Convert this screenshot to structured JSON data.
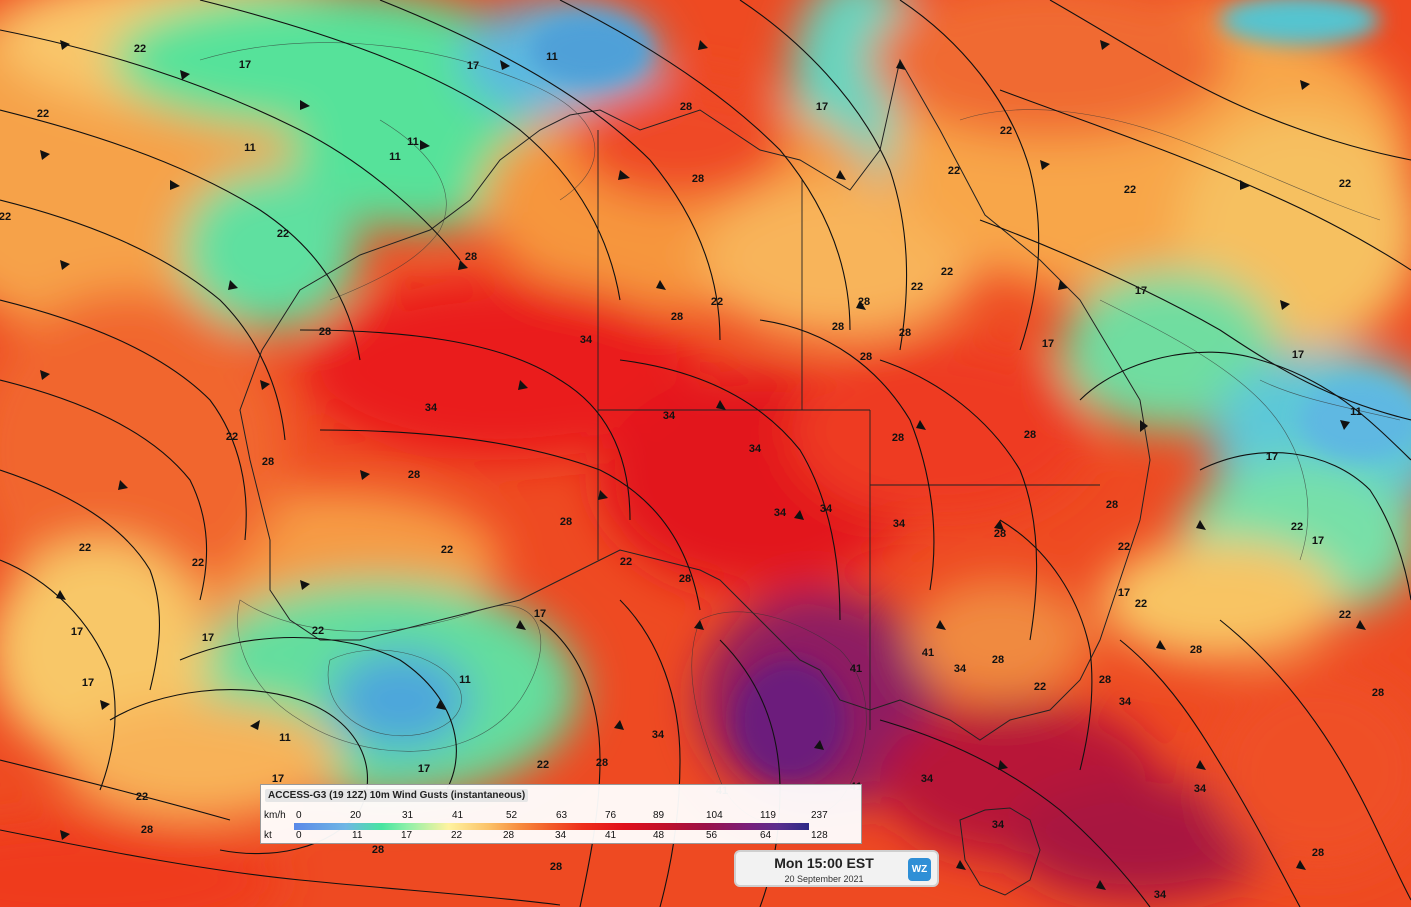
{
  "map": {
    "contour_labels": [
      "11",
      "17",
      "22",
      "28",
      "34",
      "41"
    ],
    "palette": {
      "ocean_base": "#ef3a1d",
      "calm_blue": "#6fb6e5",
      "green": "#47e5a0",
      "pale_yellow": "#fbe08a",
      "orange": "#f78a3c",
      "red": "#e0101b",
      "purple": "#7a1e7a"
    }
  },
  "legend": {
    "title": "ACCESS-G3 (19 12Z) 10m Wind Gusts (instantaneous)",
    "kmh_unit": "km/h",
    "kt_unit": "kt",
    "kmh_ticks": [
      "0",
      "20",
      "31",
      "41",
      "52",
      "63",
      "76",
      "89",
      "104",
      "119",
      "237"
    ],
    "kt_ticks": [
      "0",
      "11",
      "17",
      "22",
      "28",
      "34",
      "41",
      "48",
      "56",
      "64",
      "128"
    ]
  },
  "timebox": {
    "main": "Mon 15:00 EST",
    "date": "20 September 2021",
    "logo": "WZ"
  }
}
